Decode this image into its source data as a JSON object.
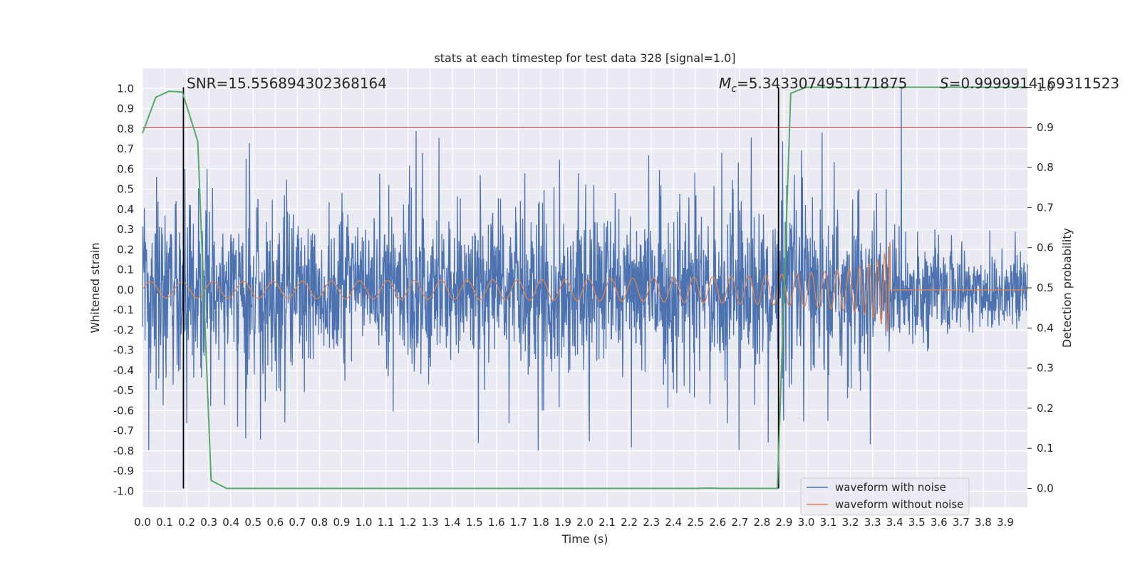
{
  "chart_data": {
    "type": "line",
    "title": "stats at each timestep for test data 328 [signal=1.0]",
    "xlabel": "Time (s)",
    "ylabel_left": "Whitened strain",
    "ylabel_right": "Detection probability",
    "xlim": [
      0.0,
      4.0
    ],
    "ylim_left": [
      -1.08,
      1.1
    ],
    "ylim_right": [
      -0.047,
      1.047
    ],
    "x_ticks": [
      "0.0",
      "0.1",
      "0.2",
      "0.3",
      "0.4",
      "0.5",
      "0.6",
      "0.7",
      "0.8",
      "0.9",
      "1.0",
      "1.1",
      "1.2",
      "1.3",
      "1.4",
      "1.5",
      "1.6",
      "1.7",
      "1.8",
      "1.9",
      "2.0",
      "2.1",
      "2.2",
      "2.3",
      "2.4",
      "2.5",
      "2.6",
      "2.7",
      "2.8",
      "2.9",
      "3.0",
      "3.1",
      "3.2",
      "3.3",
      "3.4",
      "3.5",
      "3.6",
      "3.7",
      "3.8",
      "3.9"
    ],
    "y_ticks_left": [
      "-1.0",
      "-0.9",
      "-0.8",
      "-0.7",
      "-0.6",
      "-0.5",
      "-0.4",
      "-0.3",
      "-0.2",
      "-0.1",
      "0.0",
      "0.1",
      "0.2",
      "0.3",
      "0.4",
      "0.5",
      "0.6",
      "0.7",
      "0.8",
      "0.9",
      "1.0"
    ],
    "y_ticks_right": [
      "0.0",
      "0.1",
      "0.2",
      "0.3",
      "0.4",
      "0.5",
      "0.6",
      "0.7",
      "0.8",
      "0.9",
      "1.0"
    ],
    "annotations": {
      "snr": "SNR=15.556894302368164",
      "mc_symbol": "M",
      "mc_subscript": "c",
      "mc_value": "=5.3433074951171875",
      "s_symbol": "S",
      "s_value": "=0.9999914169311523"
    },
    "threshold": {
      "value": 0.9,
      "axis": "right",
      "color": "#c44e52"
    },
    "vlines": [
      0.185,
      2.875
    ],
    "legend": {
      "position": "lower-right",
      "entries": [
        {
          "label": "waveform with noise",
          "color": "#4c72b0"
        },
        {
          "label": "waveform without noise",
          "color": "#dd8452"
        }
      ]
    },
    "series": [
      {
        "name": "waveform with noise",
        "axis": "left",
        "color": "#4c72b0",
        "description": "noisy whitened strain, amplitude roughly within +/-0.5 with spikes to +/-0.8; after t=3.38 s the amplitude shrinks",
        "max_spike": {
          "x": 3.43,
          "y": 1.0
        },
        "t_end_signal": 3.38
      },
      {
        "name": "waveform without noise",
        "axis": "left",
        "color": "#dd8452",
        "description": "chirp signal, amplitude ~0.04 rising to ~0.33 at merger t=3.38 s",
        "amp_start": 0.04,
        "amp_peak": 0.33,
        "t_merger": 3.38
      },
      {
        "name": "detection probability",
        "axis": "right",
        "color": "#55a868",
        "x": [
          0.0,
          0.06,
          0.12,
          0.18,
          0.25,
          0.31,
          0.38,
          0.5,
          1.0,
          1.5,
          2.0,
          2.5,
          2.56,
          2.62,
          2.8,
          2.87,
          2.93,
          3.0,
          3.5,
          3.9,
          4.0
        ],
        "y": [
          0.885,
          0.975,
          0.99,
          0.988,
          0.865,
          0.02,
          0.0,
          0.0,
          0.0,
          0.0,
          0.0,
          0.0,
          0.001,
          0.0,
          0.0,
          0.0,
          0.985,
          1.0,
          1.0,
          1.0,
          1.0
        ]
      }
    ]
  }
}
